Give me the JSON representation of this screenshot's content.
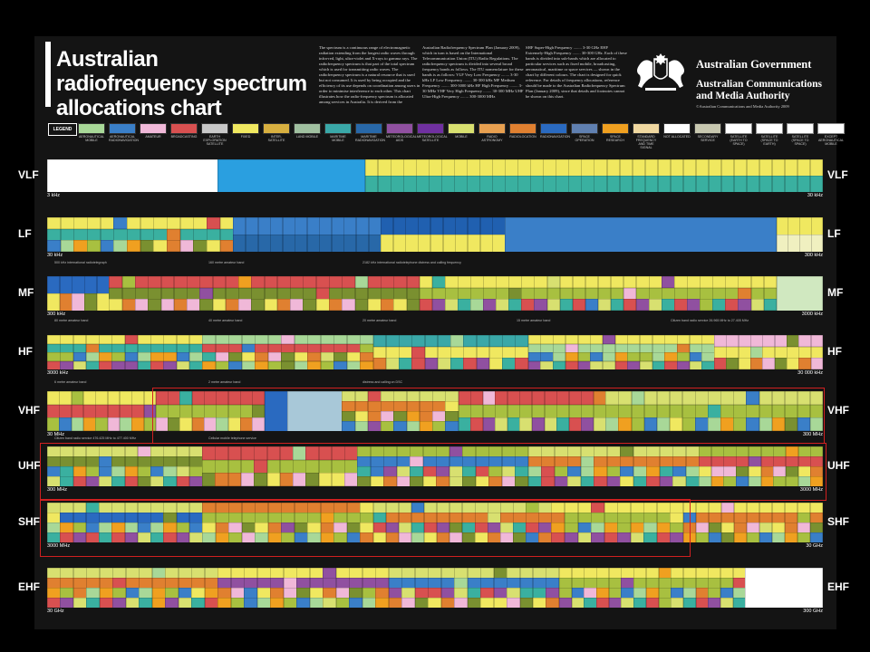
{
  "title": "Australian radiofrequency spectrum allocations chart",
  "intro_columns": [
    "The spectrum is a continuous range of electromagnetic radiation extending from the longest radio waves through infra-red, light, ultra-violet and X-rays to gamma rays. The radiofrequency spectrum is that part of the total spectrum which is used for transmitting radio waves. The radiofrequency spectrum is a natural resource that is used but not consumed. It is used by being occupied and the efficiency of its use depends on coordination among users in order to minimise interference to each other. This chart illustrates how the radio-frequency spectrum is allocated among services in Australia. It is derived from the",
    "Australian Radiofrequency Spectrum Plan (January 2009), which in turn is based on the International Telecommunication Union (ITU) Radio Regulations. The radiofrequency spectrum is divided into several broad frequency bands as follows. The ITU nomenclature for these bands is as follows: VLF Very Low Frequency ........ 3-30 kHz  LF Low Frequency ........ 30-300 kHz  MF Medium Frequency ........ 300-3000 kHz  HF High Frequency ........ 3-30 MHz  VHF Very High Frequency ........ 30-300 MHz  UHF Ultra-High Frequency ........ 300-3000 MHz",
    "SHF Super-High Frequency ........ 3-30 GHz  EHF Extremely-High Frequency ........ 30-300 GHz. Each of these bands is divided into sub-bands which are allocated to particular services such as fixed mobile, broadcasting, aeronautical, maritime or space services — shown in the chart by different colours. The chart is designed for quick reference. For details of frequency allocations, reference should be made to the Australian Radiofrequency Spectrum Plan (January 2009), since that details and footnotes cannot be shown on this chart."
  ],
  "government": {
    "line1": "Australian Government",
    "line2": "Australian Communications",
    "line3": "and Media Authority",
    "copyright": "©Australian Communications and Media Authority 2009"
  },
  "legend_title": "LEGEND",
  "legend": [
    {
      "label": "AERONAUTICAL MOBILE",
      "color": "#a8d898"
    },
    {
      "label": "AERONAUTICAL RADIONAVIGATION",
      "color": "#3a7fc8"
    },
    {
      "label": "AMATEUR",
      "color": "#f0b8d8"
    },
    {
      "label": "BROADCASTING",
      "color": "#d85050"
    },
    {
      "label": "EARTH EXPLORATION SATELLITE",
      "color": "#c8c8c8"
    },
    {
      "label": "FIXED",
      "color": "#f0e860"
    },
    {
      "label": "INTER-SATELLITE",
      "color": "#d8b040"
    },
    {
      "label": "LAND MOBILE",
      "color": "#a0c0a0"
    },
    {
      "label": "MARITIME MOBILE",
      "color": "#3aa8a8"
    },
    {
      "label": "MARITIME RADIONAVIGATION",
      "color": "#2868a8"
    },
    {
      "label": "METEOROLOGICAL AIDS",
      "color": "#9050a0"
    },
    {
      "label": "METEOROLOGICAL SATELLITE",
      "color": "#7030a0"
    },
    {
      "label": "MOBILE",
      "color": "#d8e070"
    },
    {
      "label": "RADIO ASTRONOMY",
      "color": "#e8a050"
    },
    {
      "label": "RADIOLOCATION",
      "color": "#e08030"
    },
    {
      "label": "RADIONAVIGATION",
      "color": "#2a6ac0"
    },
    {
      "label": "SPACE OPERATION",
      "color": "#6080b0"
    },
    {
      "label": "SPACE RESEARCH",
      "color": "#f0a020"
    },
    {
      "label": "STANDARD FREQUENCY AND TIME SIGNAL",
      "color": "#f0d8a0"
    },
    {
      "label": "NOT ALLOCATED",
      "color": "#ffffff"
    },
    {
      "label": "SECONDARY SERVICE",
      "color": "#c8c8b0"
    },
    {
      "label": "SATELLITE (EARTH TO SPACE)",
      "color": "#ffffff"
    },
    {
      "label": "SATELLITE (SPACE TO EARTH)",
      "color": "#ffffff"
    },
    {
      "label": "SATELLITE (SPACE TO SPACE)",
      "color": "#ffffff"
    },
    {
      "label": "EXCEPT AERONAUTICAL MOBILE",
      "color": "#ffffff"
    }
  ],
  "chart_data": {
    "type": "table",
    "bands": [
      {
        "name": "VLF",
        "start": "3 kHz",
        "end": "30 kHz",
        "allocations": [
          {
            "from": 0.0,
            "to": 0.22,
            "service": "NOT ALLOCATED",
            "color": "#ffffff",
            "rows": 1
          },
          {
            "from": 0.22,
            "to": 0.41,
            "service": "RADIONAVIGATION",
            "color": "#2a9fe0",
            "rows": 1
          },
          {
            "from": 0.41,
            "to": 1.0,
            "service": "FIXED / MARITIME MOBILE",
            "color": "#f0e860",
            "color2": "#3ab0a0",
            "rows": 2
          }
        ]
      },
      {
        "name": "LF",
        "start": "30 kHz",
        "end": "300 kHz",
        "allocations": [
          {
            "from": 0.0,
            "to": 0.12,
            "service": "FIXED / MARITIME MOBILE",
            "color": "#f0e860",
            "color2": "#3ab0a0",
            "rows": 3
          },
          {
            "from": 0.12,
            "to": 0.24,
            "service": "FIXED / MARITIME MOBILE",
            "color": "#f0e860",
            "color2": "#3ab0a0",
            "rows": 3
          },
          {
            "from": 0.24,
            "to": 0.43,
            "service": "RADIONAVIGATION",
            "color": "#3a7fc8",
            "color2": "#2868a8",
            "rows": 2
          },
          {
            "from": 0.43,
            "to": 0.59,
            "service": "RADIONAVIGATION",
            "color": "#2060b0",
            "color2": "#f0e860",
            "rows": 2
          },
          {
            "from": 0.59,
            "to": 0.94,
            "service": "AERONAUTICAL RADIONAVIGATION",
            "color": "#3a7fc8",
            "rows": 1
          },
          {
            "from": 0.94,
            "to": 1.0,
            "service": "FIXED / MOBILE",
            "color": "#f0e860",
            "color2": "#f0f0c0",
            "rows": 2
          }
        ]
      },
      {
        "name": "MF",
        "start": "300 kHz",
        "end": "3000 kHz",
        "allocations": [
          {
            "from": 0.0,
            "to": 0.08,
            "service": "AERONAUTICAL RADIONAVIGATION",
            "color": "#2a6ac0",
            "rows": 2
          },
          {
            "from": 0.08,
            "to": 0.48,
            "service": "BROADCASTING",
            "color": "#d85050",
            "color2": "#7a9030",
            "rows": 3
          },
          {
            "from": 0.48,
            "to": 0.94,
            "service": "FIXED / MOBILE",
            "color": "#f0e860",
            "color2": "#a8c040",
            "rows": 3
          },
          {
            "from": 0.94,
            "to": 1.0,
            "service": "FIXED",
            "color": "#d0e8c0",
            "rows": 1
          }
        ]
      },
      {
        "name": "HF",
        "start": "3000 kHz",
        "end": "30 000 kHz",
        "allocations": [
          {
            "from": 0.0,
            "to": 0.2,
            "service": "FIXED / MOBILE",
            "color": "#f0e860",
            "color2": "#3ab0a0",
            "rows": 4
          },
          {
            "from": 0.2,
            "to": 0.42,
            "service": "AERONAUTICAL MOBILE",
            "color": "#a8d898",
            "color2": "#d85050",
            "rows": 4
          },
          {
            "from": 0.42,
            "to": 0.62,
            "service": "MARITIME MOBILE",
            "color": "#3aa8a8",
            "color2": "#f0e860",
            "rows": 3
          },
          {
            "from": 0.62,
            "to": 0.86,
            "service": "FIXED / MOBILE",
            "color": "#f0e860",
            "color2": "#a8d898",
            "rows": 4
          },
          {
            "from": 0.86,
            "to": 1.0,
            "service": "AMATEUR",
            "color": "#f0b8d8",
            "color2": "#f0e860",
            "rows": 3
          }
        ]
      },
      {
        "name": "VHF",
        "start": "30 MHz",
        "end": "300 MHz",
        "allocations": [
          {
            "from": 0.0,
            "to": 0.14,
            "service": "FIXED / MOBILE",
            "color": "#f0e860",
            "color2": "#d85050",
            "rows": 3
          },
          {
            "from": 0.14,
            "to": 0.28,
            "service": "BROADCASTING",
            "color": "#d85050",
            "color2": "#a8c040",
            "rows": 3
          },
          {
            "from": 0.28,
            "to": 0.31,
            "service": "AERONAUTICAL RADIONAVIGATION",
            "color": "#2a6ac0",
            "rows": 1
          },
          {
            "from": 0.31,
            "to": 0.38,
            "service": "BROADCASTING",
            "color": "#a8c8d8",
            "rows": 1
          },
          {
            "from": 0.38,
            "to": 0.53,
            "service": "MOBILE",
            "color": "#d8e070",
            "color2": "#e08030",
            "rows": 4
          },
          {
            "from": 0.53,
            "to": 0.72,
            "service": "BROADCASTING",
            "color": "#d85050",
            "color2": "#a8c040",
            "rows": 3
          },
          {
            "from": 0.72,
            "to": 1.0,
            "service": "FIXED / MOBILE",
            "color": "#d8e070",
            "color2": "#a8c040",
            "rows": 3
          }
        ]
      },
      {
        "name": "UHF",
        "start": "300 MHz",
        "end": "3000 MHz",
        "allocations": [
          {
            "from": 0.0,
            "to": 0.2,
            "service": "FIXED / MOBILE",
            "color": "#d8e070",
            "color2": "#7a9030",
            "rows": 4
          },
          {
            "from": 0.2,
            "to": 0.4,
            "service": "BROADCASTING",
            "color": "#d85050",
            "color2": "#a8c040",
            "rows": 3
          },
          {
            "from": 0.4,
            "to": 0.62,
            "service": "MOBILE",
            "color": "#a8c040",
            "color2": "#3a7fc8",
            "rows": 4
          },
          {
            "from": 0.62,
            "to": 0.84,
            "service": "FIXED / MOBILE",
            "color": "#d8e070",
            "color2": "#e08030",
            "rows": 4
          },
          {
            "from": 0.84,
            "to": 1.0,
            "service": "RADIOLOCATION",
            "color": "#a8c040",
            "color2": "#d85050",
            "rows": 4
          }
        ]
      },
      {
        "name": "SHF",
        "start": "3000 MHz",
        "end": "30 GHz",
        "allocations": [
          {
            "from": 0.0,
            "to": 0.2,
            "service": "FIXED-SATELLITE",
            "color": "#d8e070",
            "color2": "#2a6ac0",
            "rows": 4
          },
          {
            "from": 0.2,
            "to": 0.42,
            "service": "RADIOLOCATION",
            "color": "#e08030",
            "color2": "#a8c040",
            "rows": 4
          },
          {
            "from": 0.42,
            "to": 0.65,
            "service": "FIXED / MOBILE",
            "color": "#d8e070",
            "color2": "#e08030",
            "rows": 4
          },
          {
            "from": 0.65,
            "to": 0.82,
            "service": "FIXED-SATELLITE",
            "color": "#f0e860",
            "color2": "#a8c040",
            "rows": 4
          },
          {
            "from": 0.82,
            "to": 1.0,
            "service": "FIXED / MOBILE",
            "color": "#f0e860",
            "color2": "#e08030",
            "rows": 4
          }
        ]
      },
      {
        "name": "EHF",
        "start": "30 GHz",
        "end": "300 GHz",
        "allocations": [
          {
            "from": 0.0,
            "to": 0.22,
            "service": "FIXED / MOBILE",
            "color": "#d8e070",
            "color2": "#e08030",
            "rows": 4
          },
          {
            "from": 0.22,
            "to": 0.44,
            "service": "FIXED-SATELLITE",
            "color": "#f0e860",
            "color2": "#9050a0",
            "rows": 4
          },
          {
            "from": 0.44,
            "to": 0.66,
            "service": "FIXED / MOBILE",
            "color": "#d8e070",
            "color2": "#3a7fc8",
            "rows": 4
          },
          {
            "from": 0.66,
            "to": 0.9,
            "service": "FIXED / MOBILE",
            "color": "#f0e860",
            "color2": "#a8c040",
            "rows": 4
          },
          {
            "from": 0.9,
            "to": 1.0,
            "service": "NOT ALLOCATED",
            "color": "#ffffff",
            "rows": 1
          }
        ]
      }
    ],
    "notes": [
      {
        "band": "MF",
        "text": "500 kHz international radiotelegraph"
      },
      {
        "band": "MF",
        "text": "160 metre amateur band"
      },
      {
        "band": "MF",
        "text": "2182 kHz international radiotelephone distress and calling frequency"
      },
      {
        "band": "HF",
        "text": "80 metre amateur band"
      },
      {
        "band": "HF",
        "text": "40 metre amateur band"
      },
      {
        "band": "HF",
        "text": "20 metre amateur band"
      },
      {
        "band": "HF",
        "text": "15 metre amateur band"
      },
      {
        "band": "HF",
        "text": "Citizen band radio service 26.965 MHz to 27.405 MHz"
      },
      {
        "band": "VHF",
        "text": "6 metre amateur band"
      },
      {
        "band": "VHF",
        "text": "2 metre amateur band"
      },
      {
        "band": "VHF",
        "text": "distress and calling on DSC"
      },
      {
        "band": "UHF",
        "text": "Citizen band radio service 476.425 MHz to 477.400 MHz"
      },
      {
        "band": "UHF",
        "text": "Cellular mobile telephone service"
      }
    ]
  }
}
